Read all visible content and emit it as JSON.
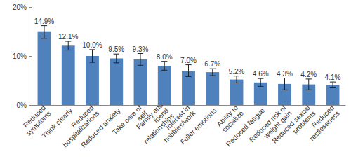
{
  "chart_data": {
    "type": "bar",
    "categories": [
      "Reduced symptoms",
      "Think clearly",
      "Reduced hospitalizations",
      "Reduced anxiety",
      "Take care of self",
      "Family and friend relationships",
      "Interest in hobbies/work",
      "Fuller emotions",
      "Ability to socialize",
      "Reduced fatigue",
      "Reduced risk of weight gain",
      "Reduced sexual problems",
      "Reduced restlessness"
    ],
    "values": [
      14.9,
      12.1,
      10.0,
      9.5,
      9.3,
      8.0,
      7.0,
      6.7,
      5.2,
      4.6,
      4.3,
      4.2,
      4.1
    ],
    "value_labels": [
      "14.9%",
      "12.1%",
      "10.0%",
      "9.5%",
      "9.3%",
      "8.0%",
      "7.0%",
      "6.7%",
      "5.2%",
      "4.6%",
      "4.3%",
      "4.2%",
      "4.1%"
    ],
    "errors": [
      1.3,
      0.9,
      1.3,
      0.9,
      1.2,
      0.9,
      1.2,
      0.7,
      0.7,
      0.8,
      1.2,
      1.1,
      0.6
    ],
    "color": "#4f81bd",
    "ylim": [
      0,
      20
    ],
    "yticks": [
      {
        "value": 0,
        "label": "0%"
      },
      {
        "value": 10,
        "label": "10%"
      },
      {
        "value": 20,
        "label": "20%"
      }
    ],
    "grid": false,
    "data_labels": true
  }
}
